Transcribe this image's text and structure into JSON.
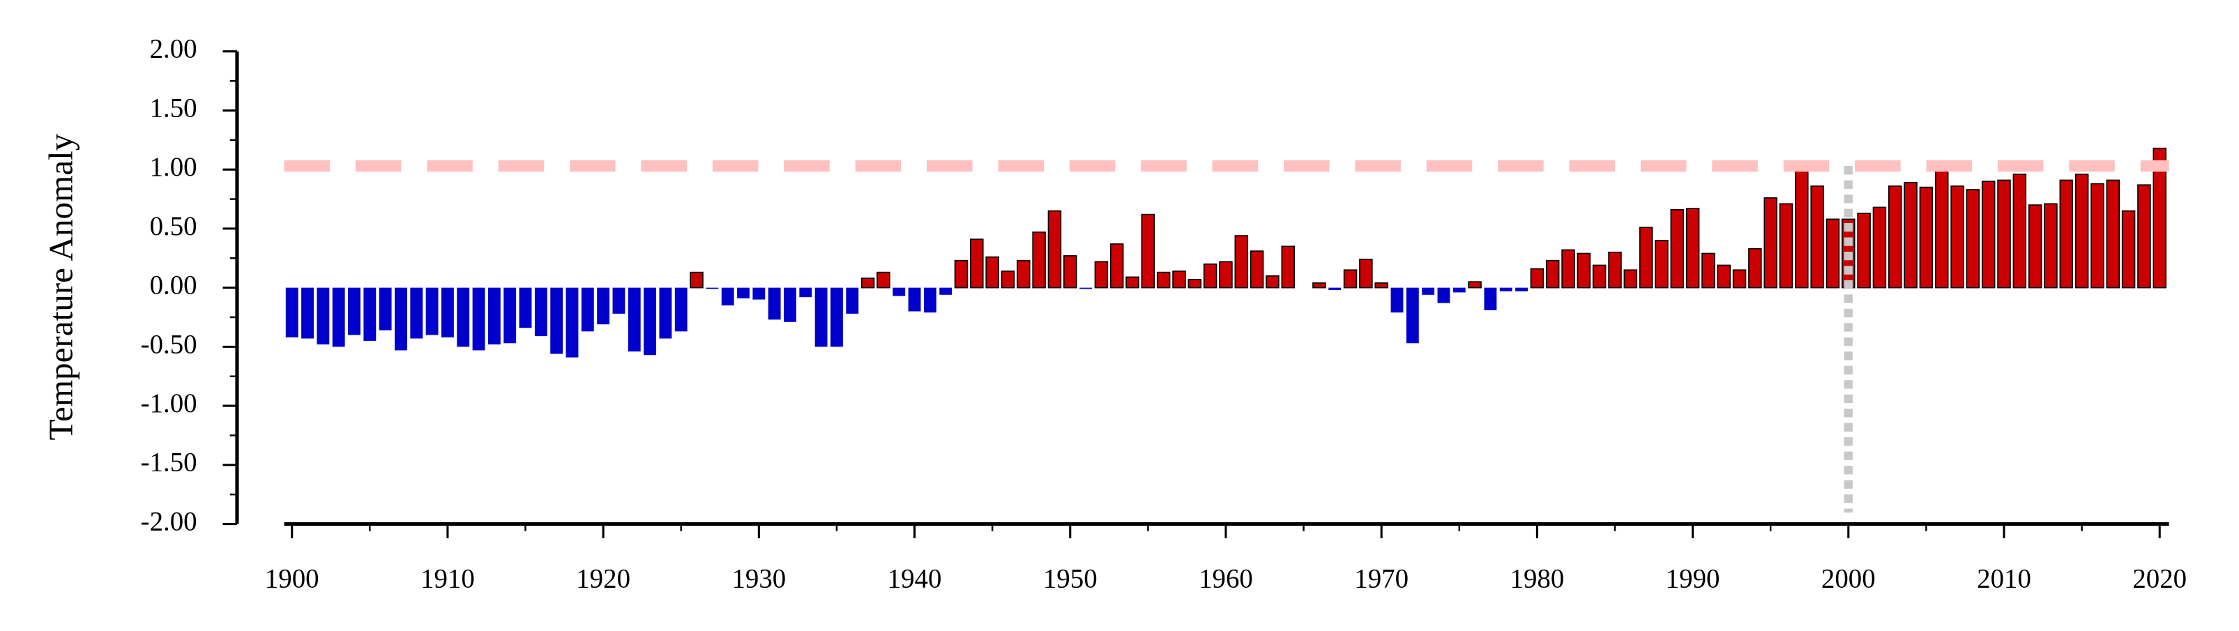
{
  "chart_data": {
    "type": "bar",
    "ylabel": "Temperature Anomaly",
    "x": [
      1900,
      1901,
      1902,
      1903,
      1904,
      1905,
      1906,
      1907,
      1908,
      1909,
      1910,
      1911,
      1912,
      1913,
      1914,
      1915,
      1916,
      1917,
      1918,
      1919,
      1920,
      1921,
      1922,
      1923,
      1924,
      1925,
      1926,
      1927,
      1928,
      1929,
      1930,
      1931,
      1932,
      1933,
      1934,
      1935,
      1936,
      1937,
      1938,
      1939,
      1940,
      1941,
      1942,
      1943,
      1944,
      1945,
      1946,
      1947,
      1948,
      1949,
      1950,
      1951,
      1952,
      1953,
      1954,
      1955,
      1956,
      1957,
      1958,
      1959,
      1960,
      1961,
      1962,
      1963,
      1964,
      1965,
      1966,
      1967,
      1968,
      1969,
      1970,
      1971,
      1972,
      1973,
      1974,
      1975,
      1976,
      1977,
      1978,
      1979,
      1980,
      1981,
      1982,
      1983,
      1984,
      1985,
      1986,
      1987,
      1988,
      1989,
      1990,
      1991,
      1992,
      1993,
      1994,
      1995,
      1996,
      1997,
      1998,
      1999,
      2000,
      2001,
      2002,
      2003,
      2004,
      2005,
      2006,
      2007,
      2008,
      2009,
      2010,
      2011,
      2012,
      2013,
      2014,
      2015,
      2016,
      2017,
      2018,
      2019,
      2020
    ],
    "values": [
      -0.42,
      -0.43,
      -0.48,
      -0.5,
      -0.4,
      -0.45,
      -0.36,
      -0.53,
      -0.43,
      -0.4,
      -0.42,
      -0.5,
      -0.53,
      -0.48,
      -0.47,
      -0.34,
      -0.41,
      -0.56,
      -0.59,
      -0.37,
      -0.31,
      -0.22,
      -0.54,
      -0.57,
      -0.43,
      -0.37,
      0.13,
      -0.01,
      -0.15,
      -0.09,
      -0.1,
      -0.27,
      -0.29,
      -0.08,
      -0.5,
      -0.5,
      -0.22,
      0.08,
      0.13,
      -0.07,
      -0.2,
      -0.21,
      -0.06,
      0.23,
      0.41,
      0.26,
      0.14,
      0.23,
      0.47,
      0.65,
      0.27,
      -0.01,
      0.22,
      0.37,
      0.09,
      0.62,
      0.13,
      0.14,
      0.07,
      0.2,
      0.22,
      0.44,
      0.31,
      0.1,
      0.35,
      0.0,
      0.04,
      -0.02,
      0.15,
      0.24,
      0.04,
      -0.21,
      -0.47,
      -0.06,
      -0.13,
      -0.04,
      0.05,
      -0.19,
      -0.03,
      -0.03,
      0.16,
      0.23,
      0.32,
      0.29,
      0.19,
      0.3,
      0.15,
      0.51,
      0.4,
      0.66,
      0.67,
      0.29,
      0.19,
      0.15,
      0.33,
      0.76,
      0.71,
      1.03,
      0.86,
      0.58,
      0.58,
      0.63,
      0.68,
      0.86,
      0.89,
      0.85,
      1.05,
      0.86,
      0.83,
      0.9,
      0.91,
      0.96,
      0.7,
      0.71,
      0.91,
      0.96,
      0.88,
      0.91,
      0.65,
      0.87,
      1.18
    ],
    "positive_color": "#cc0000",
    "negative_color": "#0000cc",
    "xlim": [
      1899.5,
      2020.6
    ],
    "xticks": [
      1900,
      1910,
      1920,
      1930,
      1940,
      1950,
      1960,
      1970,
      1980,
      1990,
      2000,
      2010,
      2020
    ],
    "xticks_minor": [
      1905,
      1915,
      1925,
      1935,
      1945,
      1955,
      1965,
      1975,
      1985,
      1995,
      2005,
      2015
    ],
    "ylim": [
      -2,
      2
    ],
    "yticks": [
      {
        "value": -2,
        "label": "-2.00"
      },
      {
        "value": -1.5,
        "label": "-1.50"
      },
      {
        "value": -1,
        "label": "-1.00"
      },
      {
        "value": -0.5,
        "label": "-0.50"
      },
      {
        "value": 0,
        "label": "0.00"
      },
      {
        "value": 0.5,
        "label": "0.50"
      },
      {
        "value": 1,
        "label": "1.00"
      },
      {
        "value": 1.5,
        "label": "1.50"
      },
      {
        "value": 2,
        "label": "2.00"
      }
    ],
    "yticks_minor": [
      -1.75,
      -1.25,
      -0.75,
      -0.25,
      0.25,
      0.75,
      1.25,
      1.75
    ],
    "hline": {
      "value": 1.03,
      "color": "#ffc0c0"
    },
    "vline": {
      "value": 2000,
      "color": "#c8c8c8"
    }
  }
}
